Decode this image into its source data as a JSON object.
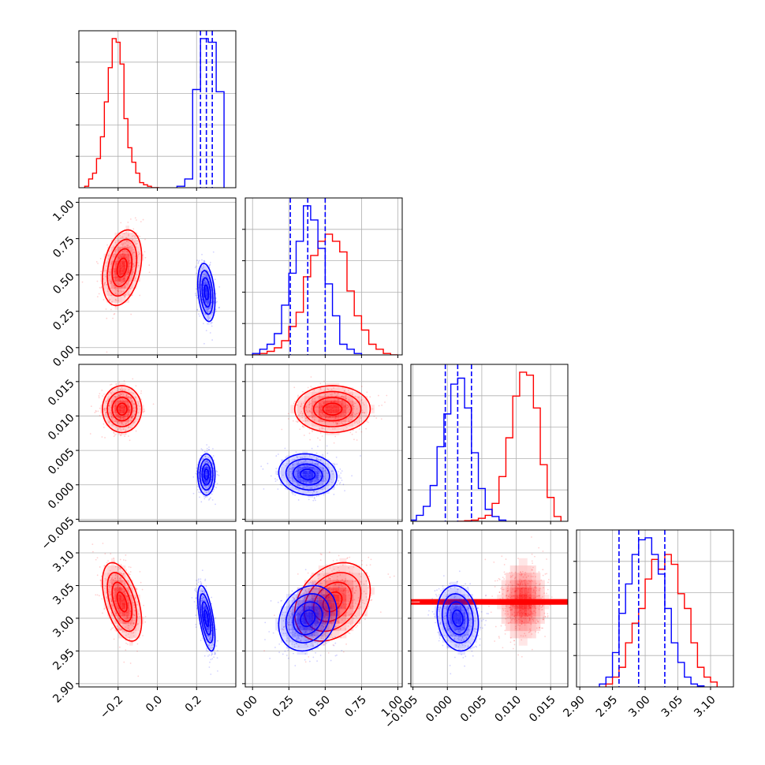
{
  "figure": {
    "name": "Corner plot"
  },
  "colors": {
    "red": "#ff0000",
    "blue": "#0000ff",
    "grid": "#b0b0b0"
  },
  "chart_data": {
    "type": "corner",
    "params": [
      {
        "key": "p0",
        "label": "",
        "lim": [
          -0.4,
          0.4
        ],
        "ticks": [
          "-0.2",
          "0.0",
          "0.2"
        ],
        "tickvals": [
          -0.2,
          0.0,
          0.2
        ]
      },
      {
        "key": "p1",
        "label": "",
        "lim": [
          -0.05,
          1.03
        ],
        "ticks": [
          "0.00",
          "0.25",
          "0.50",
          "0.75",
          "1.00"
        ],
        "tickvals": [
          0.0,
          0.25,
          0.5,
          0.75,
          1.0
        ]
      },
      {
        "key": "p2",
        "label": "",
        "lim": [
          -0.0053,
          0.0175
        ],
        "ticks": [
          "-0.005",
          "0.000",
          "0.005",
          "0.010",
          "0.015"
        ],
        "tickvals": [
          -0.005,
          0.0,
          0.005,
          0.01,
          0.015
        ]
      },
      {
        "key": "p3",
        "label": "",
        "lim": [
          2.895,
          3.135
        ],
        "ticks": [
          "2.90",
          "2.95",
          "3.00",
          "3.05",
          "3.10"
        ],
        "tickvals": [
          2.9,
          2.95,
          3.0,
          3.05,
          3.1
        ]
      }
    ],
    "series": [
      {
        "name": "",
        "color": "red",
        "mean": [
          -0.18,
          0.55,
          0.011,
          3.025
        ],
        "sd": [
          0.05,
          0.13,
          0.0017,
          0.03
        ],
        "corr": [
          [
            1,
            0.3,
            0,
            -0.5
          ],
          [
            0.3,
            1,
            0,
            0.3
          ],
          [
            0,
            0,
            1,
            0
          ],
          [
            -0.5,
            0.3,
            0,
            1
          ]
        ],
        "marginals": [
          {
            "edges": [
              -0.37,
              -0.35,
              -0.33,
              -0.31,
              -0.29,
              -0.27,
              -0.25,
              -0.23,
              -0.21,
              -0.19,
              -0.17,
              -0.15,
              -0.13,
              -0.11,
              -0.09,
              -0.07,
              -0.05,
              -0.03,
              -0.01,
              0.01
            ],
            "counts": [
              2,
              12,
              20,
              40,
              70,
              118,
              165,
              205,
              200,
              170,
              95,
              55,
              35,
              20,
              7,
              4,
              2,
              0,
              0
            ]
          },
          {
            "edges": [
              0.0,
              0.05,
              0.1,
              0.15,
              0.2,
              0.25,
              0.3,
              0.35,
              0.4,
              0.45,
              0.5,
              0.55,
              0.6,
              0.65,
              0.7,
              0.75,
              0.8,
              0.85,
              0.9,
              0.95,
              1.0
            ],
            "counts": [
              0,
              2,
              5,
              10,
              20,
              40,
              60,
              110,
              140,
              160,
              170,
              160,
              145,
              90,
              55,
              35,
              15,
              8,
              2,
              0
            ]
          },
          {
            "edges": [
              0.0015,
              0.0025,
              0.0035,
              0.0045,
              0.0055,
              0.0065,
              0.0075,
              0.0085,
              0.0095,
              0.0105,
              0.0115,
              0.0125,
              0.0135,
              0.0145,
              0.0155,
              0.0165
            ],
            "counts": [
              0,
              1,
              2,
              5,
              10,
              30,
              75,
              140,
              210,
              250,
              245,
              190,
              95,
              40,
              8
            ]
          },
          {
            "edges": [
              2.94,
              2.95,
              2.96,
              2.97,
              2.98,
              2.99,
              3.0,
              3.01,
              3.02,
              3.03,
              3.04,
              3.05,
              3.06,
              3.07,
              3.08,
              3.09,
              3.1,
              3.11
            ],
            "counts": [
              3,
              10,
              20,
              45,
              65,
              80,
              110,
              130,
              120,
              135,
              125,
              95,
              80,
              45,
              20,
              10,
              5
            ]
          }
        ]
      },
      {
        "name": "",
        "color": "blue",
        "mean": [
          0.25,
          0.38,
          0.0015,
          3.0
        ],
        "sd": [
          0.022,
          0.1,
          0.0015,
          0.025
        ],
        "corr": [
          [
            1,
            -0.3,
            0,
            -0.6
          ],
          [
            -0.3,
            1,
            -0.1,
            0.2
          ],
          [
            0,
            -0.1,
            1,
            -0.15
          ],
          [
            -0.6,
            0.2,
            -0.15,
            1
          ]
        ],
        "quantiles": [
          [
            0.22,
            0.25,
            0.28
          ],
          [
            0.26,
            0.38,
            0.5
          ],
          [
            -0.0003,
            0.0015,
            0.0035
          ],
          [
            2.96,
            2.99,
            3.03
          ]
        ],
        "marginals": [
          {
            "edges": [
              0.1,
              0.14,
              0.18,
              0.22,
              0.26,
              0.3,
              0.34
            ],
            "counts": [
              2,
              12,
              135,
              205,
              200,
              132
            ]
          },
          {
            "edges": [
              0.0,
              0.05,
              0.1,
              0.15,
              0.2,
              0.25,
              0.3,
              0.35,
              0.4,
              0.45,
              0.5,
              0.55,
              0.6,
              0.65,
              0.7,
              0.75
            ],
            "counts": [
              2,
              8,
              15,
              30,
              70,
              115,
              160,
              210,
              190,
              150,
              100,
              55,
              15,
              8,
              2
            ]
          },
          {
            "edges": [
              -0.0055,
              -0.0045,
              -0.0035,
              -0.0025,
              -0.0015,
              -0.0005,
              0.0005,
              0.0015,
              0.0025,
              0.0035,
              0.0045,
              0.0055,
              0.0065,
              0.0075,
              0.0085
            ],
            "counts": [
              2,
              10,
              25,
              60,
              125,
              180,
              230,
              240,
              190,
              115,
              55,
              20,
              8,
              2
            ]
          },
          {
            "edges": [
              2.93,
              2.94,
              2.95,
              2.96,
              2.97,
              2.98,
              2.99,
              3.0,
              3.01,
              3.02,
              3.03,
              3.04,
              3.05,
              3.06,
              3.07,
              3.08,
              3.09
            ],
            "counts": [
              3,
              10,
              35,
              75,
              105,
              135,
              150,
              152,
              135,
              115,
              80,
              45,
              25,
              10,
              3,
              1
            ]
          }
        ]
      }
    ],
    "levels": [
      "contours at 4 density levels with filled 2-D histogram"
    ],
    "grid": true,
    "legend": "none"
  }
}
